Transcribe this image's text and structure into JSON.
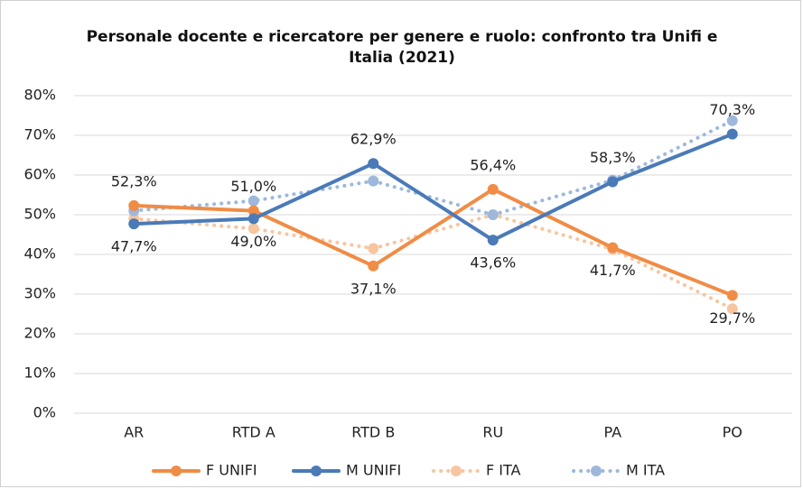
{
  "chart_data": {
    "type": "line",
    "title": "Personale docente e ricercatore per genere e ruolo: confronto tra Unifi e Italia (2021)",
    "categories": [
      "AR",
      "RTD A",
      "RTD B",
      "RU",
      "PA",
      "PO"
    ],
    "series": [
      {
        "name": "F UNIFI",
        "color": "#f08c45",
        "dashed": false,
        "values": [
          52.3,
          51.0,
          37.1,
          56.4,
          41.7,
          29.7
        ],
        "value_labels": [
          "52,3%",
          "51,0%",
          "37,1%",
          "56,4%",
          "41,7%",
          "29,7%"
        ]
      },
      {
        "name": "M UNIFI",
        "color": "#4a7ab8",
        "dashed": false,
        "values": [
          47.7,
          49.0,
          62.9,
          43.6,
          58.3,
          70.3
        ],
        "value_labels": [
          "47,7%",
          "49,0%",
          "62,9%",
          "43,6%",
          "58,3%",
          "70,3%"
        ]
      },
      {
        "name": "F ITA",
        "color": "#f7c59f",
        "dashed": true,
        "values": [
          49.0,
          46.5,
          41.5,
          50.0,
          41.3,
          26.3
        ]
      },
      {
        "name": "M ITA",
        "color": "#9db8db",
        "dashed": true,
        "values": [
          51.0,
          53.5,
          58.5,
          50.0,
          58.7,
          73.7
        ]
      }
    ],
    "ylim": [
      0,
      80
    ],
    "yticks": [
      {
        "value": 0,
        "label": "0%"
      },
      {
        "value": 10,
        "label": "10%"
      },
      {
        "value": 20,
        "label": "20%"
      },
      {
        "value": 30,
        "label": "30%"
      },
      {
        "value": 40,
        "label": "40%"
      },
      {
        "value": 50,
        "label": "50%"
      },
      {
        "value": 60,
        "label": "60%"
      },
      {
        "value": 70,
        "label": "70%"
      },
      {
        "value": 80,
        "label": "80%"
      }
    ],
    "grid": true,
    "legend": "bottom"
  }
}
